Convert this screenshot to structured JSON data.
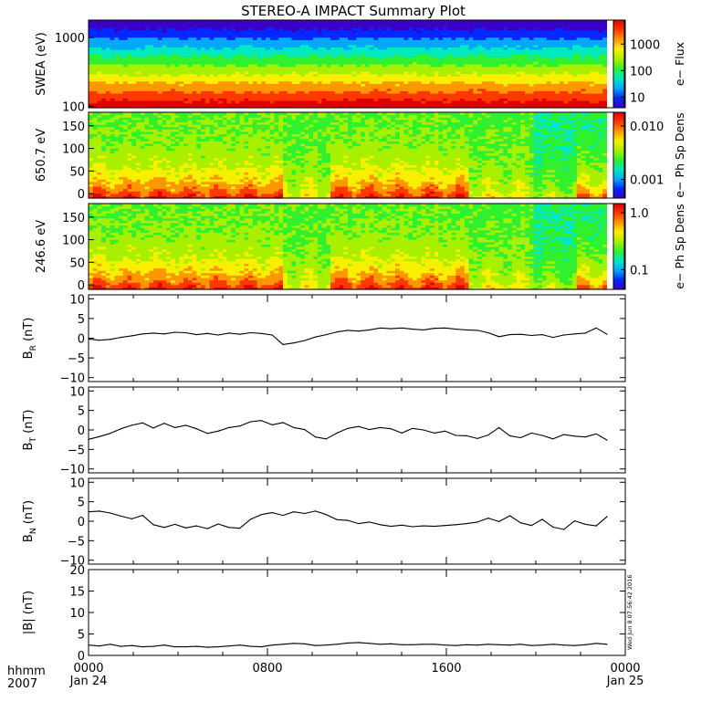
{
  "title": "STEREO-A IMPACT Summary Plot",
  "stamp": "Wed Jun  8 07:56:42 2016",
  "colors": {
    "rainbow": [
      "#3a00c8",
      "#0028ff",
      "#00a8ff",
      "#00e8c0",
      "#30f030",
      "#a8f000",
      "#f8f000",
      "#ff9800",
      "#ff3800",
      "#e00000"
    ]
  },
  "chart_data": [
    {
      "type": "heatmap",
      "id": "swea",
      "ylabel": "SWEA (eV)",
      "ylog": true,
      "ylim": [
        95,
        1800
      ],
      "yticks": [
        {
          "v": 1000,
          "label": "1000"
        },
        {
          "v": 100,
          "label": "100"
        }
      ],
      "colorbar": {
        "label": "e− Flux",
        "log": true,
        "range": [
          4,
          8000
        ],
        "ticks": [
          {
            "v": 1000,
            "label": "1000"
          },
          {
            "v": 100,
            "label": "100"
          },
          {
            "v": 10,
            "label": "10"
          }
        ]
      }
    },
    {
      "type": "heatmap",
      "id": "pad650",
      "ylabel": "650.7 eV",
      "ylim": [
        -10,
        180
      ],
      "yticks": [
        {
          "v": 150,
          "label": "150"
        },
        {
          "v": 100,
          "label": "100"
        },
        {
          "v": 50,
          "label": "50"
        },
        {
          "v": 0,
          "label": "0"
        }
      ],
      "colorbar": {
        "label": "e− Ph Sp Dens",
        "log": true,
        "range": [
          0.00045,
          0.018
        ],
        "ticks": [
          {
            "v": 0.01,
            "label": "0.010"
          },
          {
            "v": 0.001,
            "label": "0.001"
          }
        ]
      }
    },
    {
      "type": "heatmap",
      "id": "pad246",
      "ylabel": "246.6 eV",
      "ylim": [
        -10,
        180
      ],
      "yticks": [
        {
          "v": 150,
          "label": "150"
        },
        {
          "v": 100,
          "label": "100"
        },
        {
          "v": 50,
          "label": "50"
        },
        {
          "v": 0,
          "label": "0"
        }
      ],
      "colorbar": {
        "label": "e− Ph Sp Dens",
        "log": true,
        "range": [
          0.045,
          1.45
        ],
        "ticks": [
          {
            "v": 1.0,
            "label": "1.0"
          },
          {
            "v": 0.1,
            "label": "0.1"
          }
        ]
      }
    },
    {
      "type": "line",
      "id": "br",
      "ylabel": {
        "main": "B",
        "sub": "R",
        "unit": " (nT)"
      },
      "ylim": [
        -11,
        11
      ],
      "yticks": [
        {
          "v": 10,
          "label": "10"
        },
        {
          "v": 5,
          "label": "5"
        },
        {
          "v": 0,
          "label": "0"
        },
        {
          "v": -5,
          "label": "−5"
        },
        {
          "v": -10,
          "label": "−10"
        }
      ],
      "x": [
        0,
        0.5,
        1,
        1.5,
        2,
        2.5,
        3,
        3.5,
        4,
        4.5,
        5,
        5.5,
        6,
        6.5,
        7,
        7.5,
        8,
        8.5,
        9,
        9.5,
        10,
        10.5,
        11,
        11.5,
        12,
        12.5,
        13,
        13.5,
        14,
        14.5,
        15,
        15.5,
        16,
        16.5,
        17,
        17.5,
        18,
        18.5,
        19,
        19.5,
        20,
        20.5,
        21,
        21.5,
        22,
        22.5,
        23,
        23.5,
        24
      ],
      "y": [
        -0.2,
        -0.5,
        -0.3,
        0.2,
        0.6,
        1.1,
        1.3,
        1.1,
        1.5,
        1.4,
        0.9,
        1.2,
        0.8,
        1.3,
        1.0,
        1.4,
        1.2,
        0.8,
        -1.6,
        -1.2,
        -0.6,
        0.3,
        0.9,
        1.6,
        2.0,
        1.8,
        2.1,
        2.6,
        2.4,
        2.6,
        2.3,
        2.1,
        2.5,
        2.6,
        2.3,
        2.1,
        2.0,
        1.4,
        0.4,
        0.9,
        1.0,
        0.7,
        0.9,
        0.2,
        0.8,
        1.1,
        1.3,
        2.6,
        1.0
      ]
    },
    {
      "type": "line",
      "id": "bt",
      "ylabel": {
        "main": "B",
        "sub": "T",
        "unit": " (nT)"
      },
      "ylim": [
        -11,
        11
      ],
      "yticks": [
        {
          "v": 10,
          "label": "10"
        },
        {
          "v": 5,
          "label": "5"
        },
        {
          "v": 0,
          "label": "0"
        },
        {
          "v": -5,
          "label": "−5"
        },
        {
          "v": -10,
          "label": "−10"
        }
      ],
      "x": [
        0,
        0.5,
        1,
        1.5,
        2,
        2.5,
        3,
        3.5,
        4,
        4.5,
        5,
        5.5,
        6,
        6.5,
        7,
        7.5,
        8,
        8.5,
        9,
        9.5,
        10,
        10.5,
        11,
        11.5,
        12,
        12.5,
        13,
        13.5,
        14,
        14.5,
        15,
        15.5,
        16,
        16.5,
        17,
        17.5,
        18,
        18.5,
        19,
        19.5,
        20,
        20.5,
        21,
        21.5,
        22,
        22.5,
        23,
        23.5,
        24
      ],
      "y": [
        -2.4,
        -1.7,
        -0.9,
        0.3,
        1.2,
        1.8,
        0.5,
        1.7,
        0.6,
        1.2,
        0.3,
        -0.9,
        -0.3,
        0.6,
        1.0,
        2.1,
        2.4,
        1.3,
        1.9,
        0.6,
        0.1,
        -1.8,
        -2.3,
        -0.8,
        0.4,
        0.9,
        0.1,
        0.6,
        0.3,
        -0.8,
        0.4,
        0.0,
        -0.8,
        -0.3,
        -1.4,
        -1.5,
        -2.2,
        -1.3,
        0.6,
        -1.5,
        -2.0,
        -0.8,
        -1.4,
        -2.3,
        -1.2,
        -1.6,
        -1.8,
        -1.0,
        -2.6
      ]
    },
    {
      "type": "line",
      "id": "bn",
      "ylabel": {
        "main": "B",
        "sub": "N",
        "unit": " (nT)"
      },
      "ylim": [
        -11,
        11
      ],
      "yticks": [
        {
          "v": 10,
          "label": "10"
        },
        {
          "v": 5,
          "label": "5"
        },
        {
          "v": 0,
          "label": "0"
        },
        {
          "v": -5,
          "label": "−5"
        },
        {
          "v": -10,
          "label": "−10"
        }
      ],
      "x": [
        0,
        0.5,
        1,
        1.5,
        2,
        2.5,
        3,
        3.5,
        4,
        4.5,
        5,
        5.5,
        6,
        6.5,
        7,
        7.5,
        8,
        8.5,
        9,
        9.5,
        10,
        10.5,
        11,
        11.5,
        12,
        12.5,
        13,
        13.5,
        14,
        14.5,
        15,
        15.5,
        16,
        16.5,
        17,
        17.5,
        18,
        18.5,
        19,
        19.5,
        20,
        20.5,
        21,
        21.5,
        22,
        22.5,
        23,
        23.5,
        24
      ],
      "y": [
        2.4,
        2.6,
        2.1,
        1.3,
        0.6,
        1.5,
        -0.9,
        -1.6,
        -0.8,
        -1.7,
        -1.2,
        -1.9,
        -0.7,
        -1.6,
        -1.8,
        0.5,
        1.7,
        2.2,
        1.5,
        2.4,
        2.0,
        2.6,
        1.7,
        0.4,
        0.2,
        -0.6,
        -0.2,
        -0.9,
        -1.3,
        -1.0,
        -1.4,
        -1.2,
        -1.3,
        -1.1,
        -0.9,
        -0.6,
        -0.2,
        0.8,
        -0.1,
        1.4,
        -0.4,
        -1.1,
        0.5,
        -1.5,
        -2.1,
        0.1,
        -0.8,
        -1.2,
        1.2
      ]
    },
    {
      "type": "line",
      "id": "bmag",
      "ylabel": {
        "main": "|B|",
        "sub": "",
        "unit": " (nT)"
      },
      "ylim": [
        0,
        20
      ],
      "yticks": [
        {
          "v": 20,
          "label": "20"
        },
        {
          "v": 15,
          "label": "15"
        },
        {
          "v": 10,
          "label": "10"
        },
        {
          "v": 5,
          "label": "5"
        },
        {
          "v": 0,
          "label": "0"
        }
      ],
      "x": [
        0,
        0.5,
        1,
        1.5,
        2,
        2.5,
        3,
        3.5,
        4,
        4.5,
        5,
        5.5,
        6,
        6.5,
        7,
        7.5,
        8,
        8.5,
        9,
        9.5,
        10,
        10.5,
        11,
        11.5,
        12,
        12.5,
        13,
        13.5,
        14,
        14.5,
        15,
        15.5,
        16,
        16.5,
        17,
        17.5,
        18,
        18.5,
        19,
        19.5,
        20,
        20.5,
        21,
        21.5,
        22,
        22.5,
        23,
        23.5,
        24
      ],
      "y": [
        2.4,
        2.2,
        2.6,
        2.1,
        2.3,
        2.0,
        2.1,
        2.4,
        2.0,
        2.0,
        2.1,
        1.9,
        2.0,
        2.2,
        2.4,
        2.1,
        2.0,
        2.4,
        2.6,
        2.8,
        2.7,
        2.3,
        2.4,
        2.6,
        2.9,
        3.0,
        2.8,
        2.6,
        2.7,
        2.5,
        2.5,
        2.6,
        2.6,
        2.4,
        2.3,
        2.5,
        2.4,
        2.6,
        2.5,
        2.4,
        2.6,
        2.3,
        2.4,
        2.6,
        2.4,
        2.3,
        2.5,
        2.8,
        2.6
      ]
    }
  ],
  "xaxis": {
    "range_hours": [
      0,
      24
    ],
    "ticks": [
      {
        "v": 0,
        "label": "0000"
      },
      {
        "v": 8,
        "label": "0800"
      },
      {
        "v": 16,
        "label": "1600"
      },
      {
        "v": 24,
        "label": "0000"
      }
    ],
    "sublabels": [
      {
        "v": 0,
        "label": "Jan 24"
      },
      {
        "v": 24,
        "label": "Jan 25"
      }
    ],
    "unit_label": "hhmm",
    "year_label": "2007"
  }
}
